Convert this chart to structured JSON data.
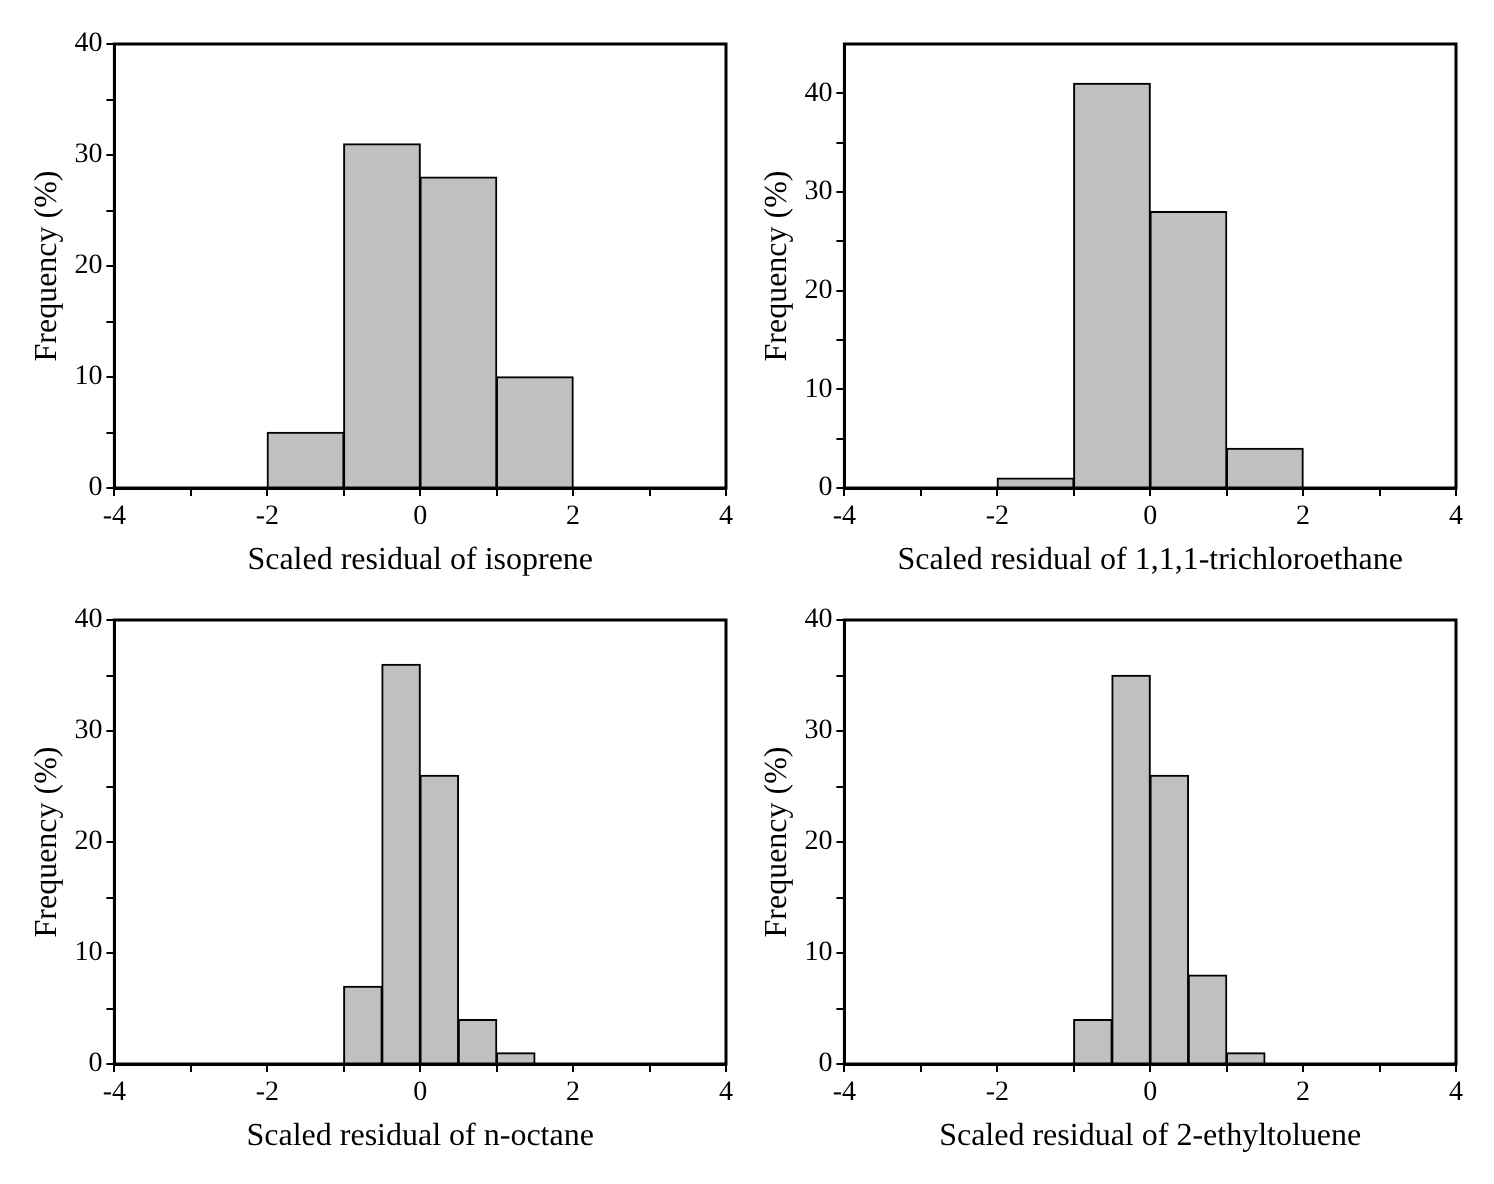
{
  "chart_data": [
    {
      "type": "histogram",
      "xlabel": "Scaled residual of isoprene",
      "ylabel": "Frequency (%)",
      "bins": [
        -2,
        -1,
        0,
        1,
        2
      ],
      "values": [
        5,
        31,
        28,
        10
      ],
      "color": "#c0c0c0",
      "xlim": [
        -4,
        4
      ],
      "xticks": [
        -4,
        {
          "value": -3,
          "label": null
        },
        -2,
        {
          "value": -1,
          "label": null
        },
        0,
        {
          "value": 1,
          "label": null
        },
        2,
        {
          "value": 3,
          "label": null
        },
        4
      ],
      "ylim": [
        0,
        40
      ],
      "yticks": [
        0,
        {
          "value": 5,
          "label": null
        },
        10,
        {
          "value": 15,
          "label": null
        },
        20,
        {
          "value": 25,
          "label": null
        },
        30,
        {
          "value": 35,
          "label": null
        },
        40
      ]
    },
    {
      "type": "histogram",
      "xlabel": "Scaled residual of 1,1,1-trichloroethane",
      "ylabel": "Frequency (%)",
      "bins": [
        -2,
        -1,
        0,
        1,
        2
      ],
      "values": [
        1,
        41,
        28,
        4
      ],
      "color": "#c0c0c0",
      "xlim": [
        -4,
        4
      ],
      "xticks": [
        -4,
        {
          "value": -3,
          "label": null
        },
        -2,
        {
          "value": -1,
          "label": null
        },
        0,
        {
          "value": 1,
          "label": null
        },
        2,
        {
          "value": 3,
          "label": null
        },
        4
      ],
      "ylim": [
        0,
        45
      ],
      "yticks": [
        0,
        {
          "value": 5,
          "label": null
        },
        10,
        {
          "value": 15,
          "label": null
        },
        20,
        {
          "value": 25,
          "label": null
        },
        30,
        {
          "value": 35,
          "label": null
        },
        40
      ]
    },
    {
      "type": "histogram",
      "xlabel": "Scaled residual of n-octane",
      "ylabel": "Frequency (%)",
      "bins": [
        -1,
        -0.5,
        0,
        0.5,
        1,
        1.5
      ],
      "values": [
        7,
        36,
        26,
        4,
        1
      ],
      "color": "#c0c0c0",
      "xlim": [
        -4,
        4
      ],
      "xticks": [
        -4,
        {
          "value": -3,
          "label": null
        },
        -2,
        {
          "value": -1,
          "label": null
        },
        0,
        {
          "value": 1,
          "label": null
        },
        2,
        {
          "value": 3,
          "label": null
        },
        4
      ],
      "ylim": [
        0,
        40
      ],
      "yticks": [
        0,
        {
          "value": 5,
          "label": null
        },
        10,
        {
          "value": 15,
          "label": null
        },
        20,
        {
          "value": 25,
          "label": null
        },
        30,
        {
          "value": 35,
          "label": null
        },
        40
      ]
    },
    {
      "type": "histogram",
      "xlabel": "Scaled residual of 2-ethyltoluene",
      "ylabel": "Frequency (%)",
      "bins": [
        -1,
        -0.5,
        0,
        0.5,
        1,
        1.5
      ],
      "values": [
        4,
        35,
        26,
        8,
        1
      ],
      "color": "#c0c0c0",
      "xlim": [
        -4,
        4
      ],
      "xticks": [
        -4,
        {
          "value": -3,
          "label": null
        },
        -2,
        {
          "value": -1,
          "label": null
        },
        0,
        {
          "value": 1,
          "label": null
        },
        2,
        {
          "value": 3,
          "label": null
        },
        4
      ],
      "ylim": [
        0,
        40
      ],
      "yticks": [
        0,
        {
          "value": 5,
          "label": null
        },
        10,
        {
          "value": 15,
          "label": null
        },
        20,
        {
          "value": 25,
          "label": null
        },
        30,
        {
          "value": 35,
          "label": null
        },
        40
      ]
    }
  ]
}
